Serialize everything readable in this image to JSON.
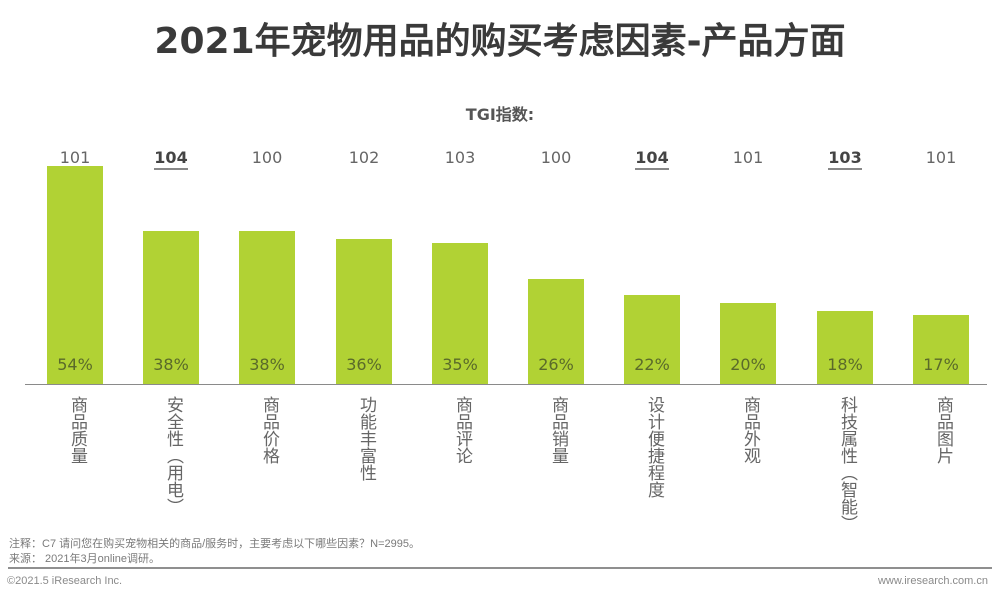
{
  "title": "2021年宠物用品的购买考虑因素-产品方面",
  "tgi_label": "TGI指数:",
  "colors": {
    "bar": "#b1d234",
    "title": "#3a3a3a",
    "text": "#666666"
  },
  "chart_data": {
    "type": "bar",
    "title": "2021年宠物用品的购买考虑因素-产品方面",
    "xlabel": "",
    "ylabel": "",
    "ylim": [
      0,
      60
    ],
    "grid": false,
    "categories": [
      "商品质量",
      "安全性（用电）",
      "商品价格",
      "功能丰富性",
      "商品评论",
      "商品销量",
      "设计便捷程度",
      "商品外观",
      "科技属性（智能）",
      "商品图片"
    ],
    "series": [
      {
        "name": "占比",
        "values": [
          54,
          38,
          38,
          36,
          35,
          26,
          22,
          20,
          18,
          17
        ],
        "unit": "%"
      },
      {
        "name": "TGI指数",
        "values": [
          101,
          104,
          100,
          102,
          103,
          100,
          104,
          101,
          103,
          101
        ],
        "highlighted": [
          false,
          true,
          false,
          false,
          false,
          false,
          true,
          false,
          true,
          false
        ]
      }
    ],
    "value_labels": [
      "54%",
      "38%",
      "38%",
      "36%",
      "35%",
      "26%",
      "22%",
      "20%",
      "18%",
      "17%"
    ],
    "tgi_labels": [
      "101",
      "104",
      "100",
      "102",
      "103",
      "100",
      "104",
      "101",
      "103",
      "101"
    ]
  },
  "notes": {
    "note": "注释：C7 请问您在购买宠物相关的商品/服务时，主要考虑以下哪些因素？N=2995。",
    "source": "来源： 2021年3月online调研。"
  },
  "footer": {
    "copyright": "©2021.5 iResearch Inc.",
    "website": "www.iresearch.com.cn"
  }
}
